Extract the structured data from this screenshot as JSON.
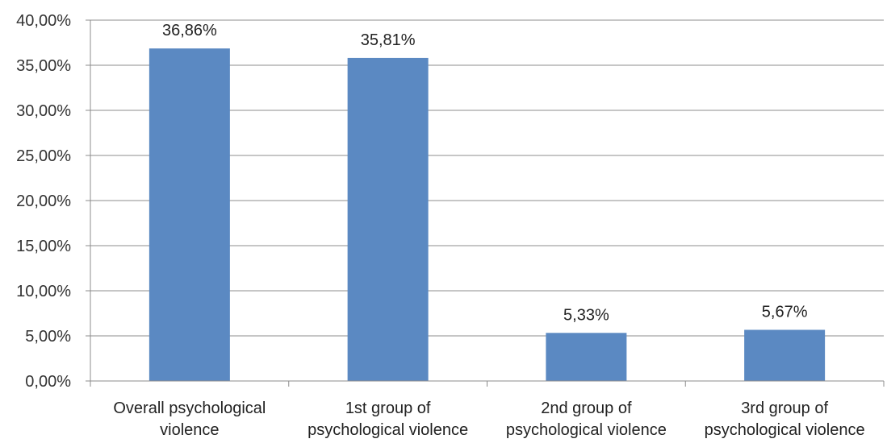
{
  "chart_data": {
    "type": "bar",
    "title": "",
    "xlabel": "",
    "ylabel": "",
    "categories": [
      [
        "Overall psychological",
        "violence"
      ],
      [
        "1st group of",
        "psychological violence"
      ],
      [
        "2nd group of",
        "psychological violence"
      ],
      [
        "3rd group of",
        "psychological violence"
      ]
    ],
    "values": [
      36.86,
      35.81,
      5.33,
      5.67
    ],
    "data_labels": [
      "36,86%",
      "35,81%",
      "5,33%",
      "5,67%"
    ],
    "ylim": [
      0,
      40
    ],
    "yticks": [
      "0,00%",
      "5,00%",
      "10,00%",
      "15,00%",
      "20,00%",
      "25,00%",
      "30,00%",
      "35,00%",
      "40,00%"
    ],
    "grid": true,
    "legend": "none",
    "bar_color": "#5b89c2",
    "grid_color": "#8c8c8c"
  }
}
